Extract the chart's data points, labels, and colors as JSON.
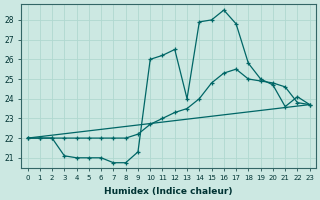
{
  "xlabel": "Humidex (Indice chaleur)",
  "background_color": "#cce8e2",
  "grid_color": "#b0d8d0",
  "line_color": "#006666",
  "xlim": [
    -0.5,
    23.5
  ],
  "ylim": [
    20.5,
    28.8
  ],
  "yticks": [
    21,
    22,
    23,
    24,
    25,
    26,
    27,
    28
  ],
  "xticks": [
    0,
    1,
    2,
    3,
    4,
    5,
    6,
    7,
    8,
    9,
    10,
    11,
    12,
    13,
    14,
    15,
    16,
    17,
    18,
    19,
    20,
    21,
    22,
    23
  ],
  "series1_x": [
    0,
    1,
    2,
    3,
    4,
    5,
    6,
    7,
    8,
    9,
    10,
    11,
    12,
    13,
    14,
    15,
    16,
    17,
    18,
    19,
    20,
    21,
    22,
    23
  ],
  "series1_y": [
    22.0,
    22.0,
    22.0,
    21.1,
    21.0,
    21.0,
    21.0,
    20.75,
    20.75,
    21.3,
    26.0,
    26.2,
    26.5,
    24.0,
    27.9,
    28.0,
    28.5,
    27.8,
    25.8,
    25.0,
    24.7,
    23.6,
    24.1,
    23.7
  ],
  "series2_x": [
    0,
    1,
    2,
    3,
    4,
    5,
    6,
    7,
    8,
    9,
    10,
    11,
    12,
    13,
    14,
    15,
    16,
    17,
    18,
    19,
    20,
    21,
    22,
    23
  ],
  "series2_y": [
    22.0,
    22.0,
    22.0,
    22.0,
    22.0,
    22.0,
    22.0,
    22.0,
    22.0,
    22.2,
    22.7,
    23.0,
    23.3,
    23.5,
    24.0,
    24.8,
    25.3,
    25.5,
    25.0,
    24.9,
    24.8,
    24.6,
    23.8,
    23.7
  ],
  "series3_x": [
    0,
    23
  ],
  "series3_y": [
    22.0,
    23.7
  ]
}
